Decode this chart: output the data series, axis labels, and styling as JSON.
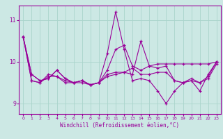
{
  "xlabel": "Windchill (Refroidissement éolien,°C)",
  "bg_color": "#cce8e4",
  "line_color": "#990099",
  "grid_color": "#aad4cc",
  "x": [
    0,
    1,
    2,
    3,
    4,
    5,
    6,
    7,
    8,
    9,
    10,
    11,
    12,
    13,
    14,
    15,
    16,
    17,
    18,
    19,
    20,
    21,
    22,
    23
  ],
  "series": [
    [
      10.6,
      9.7,
      9.55,
      9.6,
      9.8,
      9.6,
      9.5,
      9.55,
      9.45,
      9.5,
      9.8,
      10.3,
      10.4,
      9.9,
      9.8,
      9.9,
      9.95,
      9.95,
      9.95,
      9.95,
      9.95,
      9.95,
      9.95,
      10.0
    ],
    [
      10.6,
      9.7,
      9.55,
      9.6,
      9.8,
      9.6,
      9.5,
      9.55,
      9.45,
      9.5,
      10.2,
      11.2,
      10.3,
      9.55,
      9.6,
      9.55,
      9.3,
      9.0,
      9.3,
      9.5,
      9.55,
      9.3,
      9.7,
      10.0
    ],
    [
      10.6,
      9.55,
      9.5,
      9.65,
      9.65,
      9.55,
      9.5,
      9.55,
      9.45,
      9.5,
      9.7,
      9.75,
      9.75,
      9.7,
      10.5,
      9.9,
      9.85,
      9.9,
      9.55,
      9.5,
      9.6,
      9.5,
      9.65,
      10.0
    ],
    [
      10.6,
      9.55,
      9.5,
      9.7,
      9.65,
      9.5,
      9.5,
      9.5,
      9.45,
      9.5,
      9.65,
      9.7,
      9.75,
      9.85,
      9.7,
      9.7,
      9.75,
      9.75,
      9.55,
      9.5,
      9.55,
      9.5,
      9.6,
      9.95
    ]
  ],
  "ylim": [
    8.75,
    11.35
  ],
  "yticks": [
    9,
    10,
    11
  ],
  "xticks": [
    0,
    1,
    2,
    3,
    4,
    5,
    6,
    7,
    8,
    9,
    10,
    11,
    12,
    13,
    14,
    15,
    16,
    17,
    18,
    19,
    20,
    21,
    22,
    23
  ],
  "marker": "+"
}
